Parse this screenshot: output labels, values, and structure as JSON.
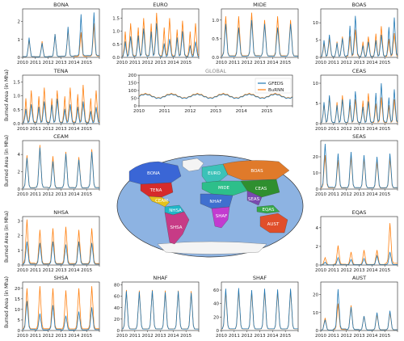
{
  "figure": {
    "ylabel": "Burned Area (in Mha)",
    "global_title": "GLOBAL",
    "colors": {
      "gfeds": "#1f77b4",
      "burnn": "#ff7f0e"
    }
  },
  "chart_data": [
    {
      "type": "line",
      "title": "BONA",
      "x": [
        "2010",
        "2011",
        "2012",
        "2013",
        "2014",
        "2015"
      ],
      "xlabel": "",
      "ylabel": "Burned Area (in Mha)",
      "y_ticks": [
        "0",
        "1",
        "2"
      ],
      "ylim": [
        0,
        2.7
      ],
      "series": [
        {
          "name": "GFEDS",
          "pattern": "boreal",
          "peaks": [
            1.1,
            0.8,
            1.3,
            1.7,
            2.4,
            2.5
          ]
        },
        {
          "name": "BuRNN",
          "pattern": "boreal",
          "peaks": [
            1.0,
            0.9,
            1.3,
            1.6,
            1.4,
            1.9
          ]
        }
      ]
    },
    {
      "type": "line",
      "title": "EURO",
      "x": [
        "2010",
        "2011",
        "2012",
        "2013",
        "2014",
        "2015"
      ],
      "xlabel": "",
      "ylabel": "",
      "y_ticks": [
        "0.0",
        "0.5",
        "1.0",
        "1.5"
      ],
      "ylim": [
        0,
        1.85
      ],
      "series": [
        {
          "name": "GFEDS",
          "pattern": "double",
          "peaks": [
            0.8,
            1.1,
            1.3,
            0.7,
            1.0,
            0.6
          ]
        },
        {
          "name": "BuRNN",
          "pattern": "double",
          "peaks": [
            1.3,
            1.5,
            1.7,
            1.5,
            1.4,
            1.3
          ]
        }
      ]
    },
    {
      "type": "line",
      "title": "MIDE",
      "x": [
        "2010",
        "2011",
        "2012",
        "2013",
        "2014",
        "2015"
      ],
      "xlabel": "",
      "ylabel": "",
      "y_ticks": [
        "0.0",
        "0.5",
        "1.0"
      ],
      "ylim": [
        0,
        1.3
      ],
      "series": [
        {
          "name": "GFEDS",
          "pattern": "annual",
          "peaks": [
            0.9,
            0.8,
            1.0,
            0.9,
            0.8,
            0.9
          ]
        },
        {
          "name": "BuRNN",
          "pattern": "annual",
          "peaks": [
            1.1,
            1.1,
            1.2,
            1.0,
            1.1,
            1.0
          ]
        }
      ]
    },
    {
      "type": "line",
      "title": "BOAS",
      "x": [
        "2010",
        "2011",
        "2012",
        "2013",
        "2014",
        "2015"
      ],
      "xlabel": "",
      "ylabel": "",
      "y_ticks": [
        "0",
        "5",
        "10"
      ],
      "ylim": [
        0,
        14
      ],
      "series": [
        {
          "name": "GFEDS",
          "pattern": "double",
          "peaks": [
            6.5,
            5.5,
            12,
            4.5,
            6.5,
            11.5
          ]
        },
        {
          "name": "BuRNN",
          "pattern": "double",
          "peaks": [
            5.5,
            6,
            8,
            6,
            9,
            7
          ]
        }
      ]
    },
    {
      "type": "line",
      "title": "TENA",
      "x": [
        "2010",
        "2011",
        "2012",
        "2013",
        "2014",
        "2015"
      ],
      "xlabel": "",
      "ylabel": "Burned Area (in Mha)",
      "y_ticks": [
        "0.0",
        "0.5",
        "1.0",
        "1.5"
      ],
      "ylim": [
        0,
        1.75
      ],
      "series": [
        {
          "name": "GFEDS",
          "pattern": "double",
          "peaks": [
            0.7,
            0.8,
            0.9,
            0.7,
            0.8,
            0.6
          ]
        },
        {
          "name": "BuRNN",
          "pattern": "double",
          "peaks": [
            1.2,
            1.3,
            1.2,
            1.3,
            1.4,
            1.2
          ]
        }
      ]
    },
    {
      "type": "line",
      "title": "GLOBAL",
      "x": [
        "2010",
        "2011",
        "2012",
        "2013",
        "2014",
        "2015"
      ],
      "xlabel": "",
      "ylabel": "",
      "y_ticks": [
        "0",
        "50",
        "100",
        "150",
        "200"
      ],
      "ylim": [
        0,
        200
      ],
      "legend": "top-right",
      "series": [
        {
          "name": "GFEDS",
          "pattern": "global",
          "base": 62,
          "amp": 14
        },
        {
          "name": "BuRNN",
          "pattern": "global",
          "base": 65,
          "amp": 15
        }
      ]
    },
    {
      "type": "line",
      "title": "CEAS",
      "x": [
        "2010",
        "2011",
        "2012",
        "2013",
        "2014",
        "2015"
      ],
      "xlabel": "",
      "ylabel": "",
      "y_ticks": [
        "0",
        "5",
        "10"
      ],
      "ylim": [
        0,
        12
      ],
      "series": [
        {
          "name": "GFEDS",
          "pattern": "double",
          "peaks": [
            7,
            6,
            8,
            5.5,
            10,
            8.5
          ]
        },
        {
          "name": "BuRNN",
          "pattern": "double",
          "peaks": [
            6.5,
            7,
            6,
            7.5,
            6.5,
            6
          ]
        }
      ]
    },
    {
      "type": "line",
      "title": "CEAM",
      "x": [
        "2010",
        "2011",
        "2012",
        "2013",
        "2014",
        "2015"
      ],
      "xlabel": "",
      "ylabel": "Burned Area (in Mha)",
      "y_ticks": [
        "0",
        "2",
        "4"
      ],
      "ylim": [
        0,
        5.6
      ],
      "series": [
        {
          "name": "GFEDS",
          "pattern": "annual",
          "peaks": [
            3.6,
            4.8,
            3.2,
            4.1,
            3.4,
            4.3
          ]
        },
        {
          "name": "BuRNN",
          "pattern": "annual",
          "peaks": [
            3.9,
            5.1,
            3.8,
            4.3,
            3.7,
            4.6
          ]
        }
      ]
    },
    {
      "type": "line",
      "title": "SEAS",
      "x": [
        "2010",
        "2011",
        "2012",
        "2013",
        "2014",
        "2015"
      ],
      "xlabel": "",
      "ylabel": "",
      "y_ticks": [
        "0",
        "10",
        "20"
      ],
      "ylim": [
        0,
        30
      ],
      "series": [
        {
          "name": "GFEDS",
          "pattern": "annual",
          "peaks": [
            28,
            22,
            23,
            21,
            20,
            22
          ]
        },
        {
          "name": "BuRNN",
          "pattern": "annual",
          "peaks": [
            21,
            18,
            20,
            19,
            17,
            19
          ]
        }
      ]
    },
    {
      "type": "line",
      "title": "NHSA",
      "x": [
        "2010",
        "2011",
        "2012",
        "2013",
        "2014",
        "2015"
      ],
      "xlabel": "",
      "ylabel": "Burned Area (in Mha)",
      "y_ticks": [
        "0",
        "1",
        "2",
        "3"
      ],
      "ylim": [
        0,
        3.3
      ],
      "series": [
        {
          "name": "GFEDS",
          "pattern": "annual",
          "peaks": [
            1.6,
            1.5,
            1.6,
            1.4,
            1.6,
            1.5
          ]
        },
        {
          "name": "BuRNN",
          "pattern": "annual",
          "peaks": [
            3.1,
            2.4,
            2.5,
            2.6,
            2.4,
            2.5
          ]
        }
      ]
    },
    {
      "type": "line",
      "title": "EQAS",
      "x": [
        "2010",
        "2011",
        "2012",
        "2013",
        "2014",
        "2015"
      ],
      "xlabel": "",
      "ylabel": "",
      "y_ticks": [
        "0",
        "2",
        "4"
      ],
      "ylim": [
        0,
        5.2
      ],
      "series": [
        {
          "name": "GFEDS",
          "pattern": "annual",
          "peaks": [
            0.3,
            0.8,
            0.6,
            0.7,
            1.0,
            1.4
          ]
        },
        {
          "name": "BuRNN",
          "pattern": "annual",
          "peaks": [
            0.8,
            2.1,
            1.4,
            1.6,
            1.6,
            4.5
          ]
        }
      ]
    },
    {
      "type": "line",
      "title": "SHSA",
      "x": [
        "2010",
        "2011",
        "2012",
        "2013",
        "2014",
        "2015"
      ],
      "xlabel": "",
      "ylabel": "Burned Area (in Mha)",
      "y_ticks": [
        "0",
        "5",
        "10",
        "15",
        "20"
      ],
      "ylim": [
        0,
        23
      ],
      "series": [
        {
          "name": "GFEDS",
          "pattern": "annual",
          "peaks": [
            14,
            8,
            12,
            7,
            9,
            11
          ]
        },
        {
          "name": "BuRNN",
          "pattern": "annual",
          "peaks": [
            20,
            21,
            20,
            19,
            20,
            21
          ]
        }
      ]
    },
    {
      "type": "line",
      "title": "NHAF",
      "x": [
        "2010",
        "2011",
        "2012",
        "2013",
        "2014",
        "2015"
      ],
      "xlabel": "",
      "ylabel": "",
      "y_ticks": [
        "0",
        "20",
        "40",
        "60",
        "80"
      ],
      "ylim": [
        0,
        85
      ],
      "series": [
        {
          "name": "GFEDS",
          "pattern": "annual",
          "peaks": [
            69,
            68,
            70,
            67,
            69,
            66
          ]
        },
        {
          "name": "BuRNN",
          "pattern": "annual",
          "peaks": [
            71,
            70,
            71,
            70,
            70,
            69
          ]
        }
      ]
    },
    {
      "type": "line",
      "title": "SHAF",
      "x": [
        "2010",
        "2011",
        "2012",
        "2013",
        "2014",
        "2015"
      ],
      "xlabel": "",
      "ylabel": "",
      "y_ticks": [
        "0",
        "20",
        "40",
        "60"
      ],
      "ylim": [
        0,
        72
      ],
      "series": [
        {
          "name": "GFEDS",
          "pattern": "annual",
          "peaks": [
            62,
            63,
            60,
            62,
            61,
            62
          ]
        },
        {
          "name": "BuRNN",
          "pattern": "annual",
          "peaks": [
            58,
            60,
            57,
            59,
            58,
            60
          ]
        }
      ]
    },
    {
      "type": "line",
      "title": "AUST",
      "x": [
        "2010",
        "2011",
        "2012",
        "2013",
        "2014",
        "2015"
      ],
      "xlabel": "",
      "ylabel": "",
      "y_ticks": [
        "0",
        "10",
        "20"
      ],
      "ylim": [
        0,
        27
      ],
      "series": [
        {
          "name": "GFEDS",
          "pattern": "annual",
          "peaks": [
            6,
            23,
            13,
            8,
            10,
            11
          ]
        },
        {
          "name": "BuRNN",
          "pattern": "annual",
          "peaks": [
            7,
            15,
            14,
            8,
            9,
            10
          ]
        }
      ]
    }
  ],
  "map": {
    "regions": [
      {
        "code": "BONA",
        "color": "#3a66d6"
      },
      {
        "code": "TENA",
        "color": "#d62b2b"
      },
      {
        "code": "CEAM",
        "color": "#e6c21c"
      },
      {
        "code": "NHSA",
        "color": "#20b7c8"
      },
      {
        "code": "SHSA",
        "color": "#c73b86"
      },
      {
        "code": "EURO",
        "color": "#3bc2b8"
      },
      {
        "code": "MIDE",
        "color": "#2dbf8a"
      },
      {
        "code": "NHAF",
        "color": "#3f6fcf"
      },
      {
        "code": "SHAF",
        "color": "#c23bd0"
      },
      {
        "code": "BOAS",
        "color": "#e07a2a"
      },
      {
        "code": "CEAS",
        "color": "#2f8f2f"
      },
      {
        "code": "SEAS",
        "color": "#7a4ab0"
      },
      {
        "code": "EQAS",
        "color": "#36a84a"
      },
      {
        "code": "AUST",
        "color": "#e04e2a"
      }
    ]
  }
}
